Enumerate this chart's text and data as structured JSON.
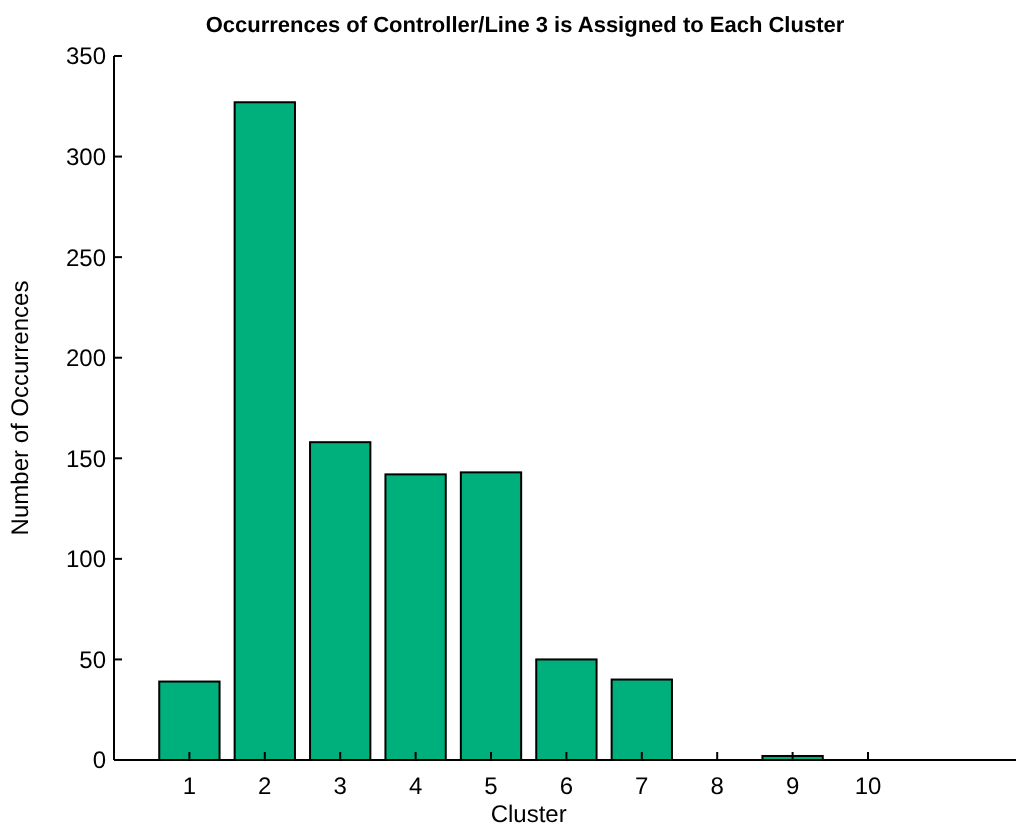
{
  "chart_data": {
    "type": "bar",
    "title": "Occurrences of Controller/Line 3 is Assigned to Each Cluster",
    "xlabel": "Cluster",
    "ylabel": "Number of Occurrences",
    "x": [
      1,
      2,
      3,
      4,
      5,
      6,
      7,
      8,
      9,
      10
    ],
    "values": [
      39,
      327,
      158,
      142,
      143,
      50,
      40,
      0,
      2,
      0
    ],
    "color": "#00b07c",
    "xlim": [
      0,
      12
    ],
    "xticks": [
      1,
      2,
      3,
      4,
      5,
      6,
      7,
      8,
      9,
      10
    ],
    "ylim": [
      0,
      350
    ],
    "yticks": [
      0,
      50,
      100,
      150,
      200,
      250,
      300,
      350
    ],
    "grid": false
  }
}
